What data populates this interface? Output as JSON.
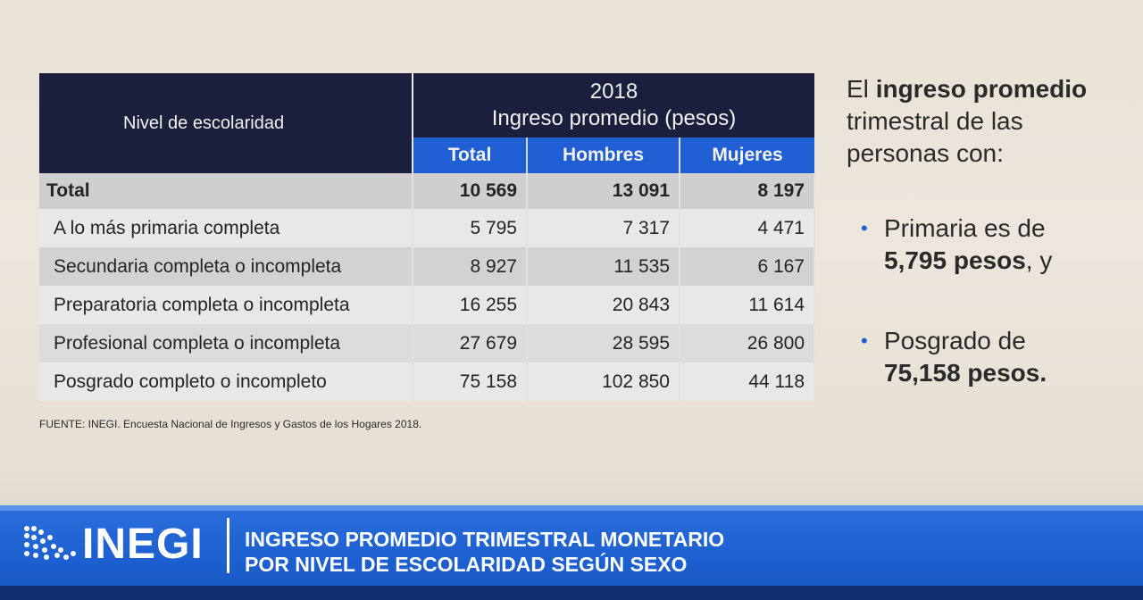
{
  "table": {
    "level_header": "Nivel de escolaridad",
    "year": "2018",
    "group_header": "Ingreso promedio (pesos)",
    "columns": [
      "Total",
      "Hombres",
      "Mujeres"
    ],
    "rows": [
      {
        "label": "Total",
        "total": "10 569",
        "hombres": "13 091",
        "mujeres": "8 197"
      },
      {
        "label": "A lo más primaria completa",
        "total": "5 795",
        "hombres": "7 317",
        "mujeres": "4 471"
      },
      {
        "label": "Secundaria completa o incompleta",
        "total": "8 927",
        "hombres": "11 535",
        "mujeres": "6 167"
      },
      {
        "label": "Preparatoria completa o incompleta",
        "total": "16 255",
        "hombres": "20 843",
        "mujeres": "11 614"
      },
      {
        "label": "Profesional completa o incompleta",
        "total": "27 679",
        "hombres": "28 595",
        "mujeres": "26 800"
      },
      {
        "label": "Posgrado completo o incompleto",
        "total": "75 158",
        "hombres": "102 850",
        "mujeres": "44 118"
      }
    ]
  },
  "source": "FUENTE: INEGI. Encuesta Nacional de Ingresos y Gastos de los Hogares 2018.",
  "side": {
    "intro_prefix": "El ",
    "intro_bold": "ingreso promedio",
    "intro_line2": "trimestral de las",
    "intro_line3": "personas con:",
    "bullet1_text": "Primaria es de",
    "bullet1_bold": "5,795 pesos",
    "bullet1_suffix": ", y",
    "bullet2_text": "Posgrado de",
    "bullet2_bold": "75,158 pesos."
  },
  "footer": {
    "logo": "INEGI",
    "title_line1": "INGRESO PROMEDIO TRIMESTRAL MONETARIO",
    "title_line2": "POR NIVEL DE ESCOLARIDAD SEGÚN SEXO"
  },
  "colors": {
    "header_dark": "#1b1f3d",
    "header_blue": "#1f5ed3",
    "footer_blue": "#1c5fd0"
  }
}
